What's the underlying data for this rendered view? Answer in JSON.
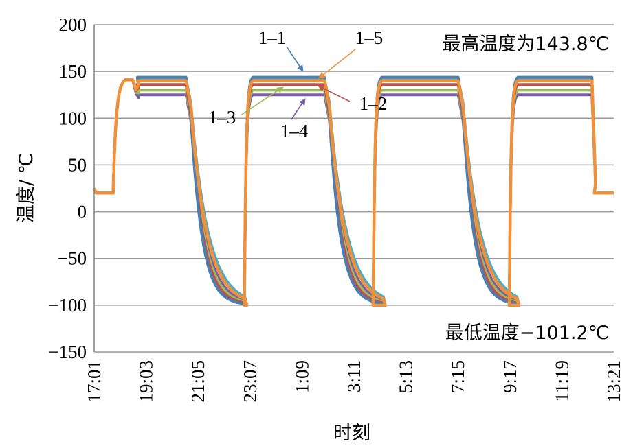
{
  "chart_data": {
    "type": "line",
    "title": "",
    "xlabel": "时刻",
    "ylabel": "温度/ ℃",
    "ylim": [
      -150,
      200
    ],
    "yticks": [
      200,
      150,
      100,
      50,
      0,
      -50,
      -100,
      -150
    ],
    "ytick_labels": [
      "200",
      "150",
      "100",
      "50",
      "0",
      "−50",
      "−100",
      "−150"
    ],
    "xlim_hours": [
      17.02,
      38.4
    ],
    "xtick_labels": [
      "17:01",
      "19:03",
      "21:05",
      "23:07",
      "1:09",
      "3:11",
      "5:13",
      "7:15",
      "9:17",
      "11:19",
      "13:21"
    ],
    "grid": "horizontal",
    "annotations": {
      "max_text": "最高温度为143.8℃",
      "min_text": "最低温度−101.2℃"
    },
    "cycle": {
      "ambient": 20,
      "low": -100,
      "first_rise_start_hours": 17.8,
      "hot_starts_hours": [
        18.8,
        24.5,
        30.0,
        35.6
      ],
      "hot_ends_hours": [
        20.8,
        26.5,
        32.0,
        37.5
      ],
      "cold_ends_hours": [
        23.2,
        28.5,
        34.1
      ],
      "end_hold_hours": [
        37.6,
        38.4
      ]
    },
    "series": [
      {
        "name": "1–1",
        "plateau": 143.8,
        "color": "#4a7fb5"
      },
      {
        "name": "1–2",
        "plateau": 136,
        "color": "#c0504d"
      },
      {
        "name": "1–3",
        "plateau": 130,
        "color": "#9bbb59"
      },
      {
        "name": "1–4",
        "plateau": 125,
        "color": "#7b5ea7"
      },
      {
        "name": "1–5",
        "plateau": 140,
        "color": "#f0913a"
      },
      {
        "name": "",
        "plateau": 142,
        "color": "#4bacc6"
      }
    ],
    "series_labels": [
      {
        "text": "1–1",
        "series": 0
      },
      {
        "text": "1–5",
        "series": 4
      },
      {
        "text": "1–2",
        "series": 1
      },
      {
        "text": "1–3",
        "series": 2
      },
      {
        "text": "1–4",
        "series": 3
      }
    ]
  }
}
